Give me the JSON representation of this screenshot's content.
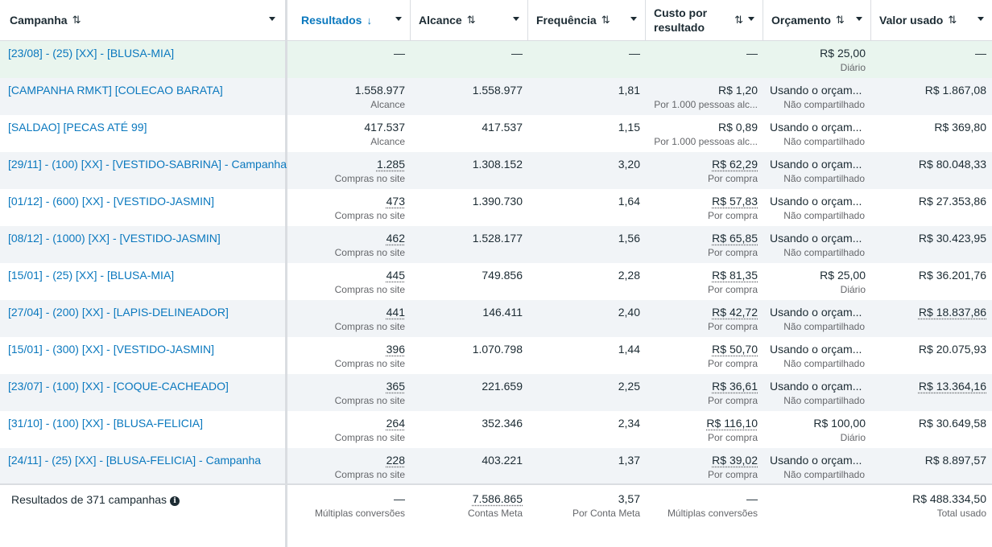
{
  "header": {
    "campaign": "Campanha",
    "results": "Resultados",
    "reach": "Alcance",
    "frequency": "Frequência",
    "cost_per_result_line1": "Custo por",
    "cost_per_result_line2": "resultado",
    "budget": "Orçamento",
    "amount_spent": "Valor usado",
    "sort_icon": "⇅",
    "sort_desc_icon": "↓"
  },
  "rows": [
    {
      "name": "[23/08] - (25) [XX] - [BLUSA-MIA]",
      "results": "—",
      "results_sub": "",
      "reach": "—",
      "frequency": "—",
      "cpr": "—",
      "cpr_sub": "",
      "budget": "R$ 25,00",
      "budget_sub": "Diário",
      "spent": "—"
    },
    {
      "name": "[CAMPANHA RMKT] [COLECAO BARATA]",
      "results": "1.558.977",
      "results_sub": "Alcance",
      "reach": "1.558.977",
      "frequency": "1,81",
      "cpr": "R$ 1,20",
      "cpr_sub": "Por 1.000 pessoas alc...",
      "budget": "Usando o orçam...",
      "budget_sub": "Não compartilhado",
      "spent": "R$ 1.867,08"
    },
    {
      "name": "[SALDAO] [PECAS ATÉ 99]",
      "results": "417.537",
      "results_sub": "Alcance",
      "reach": "417.537",
      "frequency": "1,15",
      "cpr": "R$ 0,89",
      "cpr_sub": "Por 1.000 pessoas alc...",
      "budget": "Usando o orçam...",
      "budget_sub": "Não compartilhado",
      "spent": "R$ 369,80"
    },
    {
      "name": "[29/11] - (100) [XX] - [VESTIDO-SABRINA] - Campanha",
      "results": "1.285",
      "results_sub": "Compras no site",
      "reach": "1.308.152",
      "frequency": "3,20",
      "cpr": "R$ 62,29",
      "cpr_sub": "Por compra",
      "budget": "Usando o orçam...",
      "budget_sub": "Não compartilhado",
      "spent": "R$ 80.048,33"
    },
    {
      "name": "[01/12] - (600) [XX] - [VESTIDO-JASMIN]",
      "results": "473",
      "results_sub": "Compras no site",
      "reach": "1.390.730",
      "frequency": "1,64",
      "cpr": "R$ 57,83",
      "cpr_sub": "Por compra",
      "budget": "Usando o orçam...",
      "budget_sub": "Não compartilhado",
      "spent": "R$ 27.353,86"
    },
    {
      "name": "[08/12] - (1000) [XX] - [VESTIDO-JASMIN]",
      "results": "462",
      "results_sub": "Compras no site",
      "reach": "1.528.177",
      "frequency": "1,56",
      "cpr": "R$ 65,85",
      "cpr_sub": "Por compra",
      "budget": "Usando o orçam...",
      "budget_sub": "Não compartilhado",
      "spent": "R$ 30.423,95"
    },
    {
      "name": "[15/01] - (25) [XX] - [BLUSA-MIA]",
      "results": "445",
      "results_sub": "Compras no site",
      "reach": "749.856",
      "frequency": "2,28",
      "cpr": "R$ 81,35",
      "cpr_sub": "Por compra",
      "budget": "R$ 25,00",
      "budget_sub": "Diário",
      "spent": "R$ 36.201,76"
    },
    {
      "name": "[27/04] - (200) [XX] - [LAPIS-DELINEADOR]",
      "results": "441",
      "results_sub": "Compras no site",
      "reach": "146.411",
      "frequency": "2,40",
      "cpr": "R$ 42,72",
      "cpr_sub": "Por compra",
      "budget": "Usando o orçam...",
      "budget_sub": "Não compartilhado",
      "spent": "R$ 18.837,86"
    },
    {
      "name": "[15/01] - (300) [XX] - [VESTIDO-JASMIN]",
      "results": "396",
      "results_sub": "Compras no site",
      "reach": "1.070.798",
      "frequency": "1,44",
      "cpr": "R$ 50,70",
      "cpr_sub": "Por compra",
      "budget": "Usando o orçam...",
      "budget_sub": "Não compartilhado",
      "spent": "R$ 20.075,93"
    },
    {
      "name": "[23/07] - (100) [XX] - [COQUE-CACHEADO]",
      "results": "365",
      "results_sub": "Compras no site",
      "reach": "221.659",
      "frequency": "2,25",
      "cpr": "R$ 36,61",
      "cpr_sub": "Por compra",
      "budget": "Usando o orçam...",
      "budget_sub": "Não compartilhado",
      "spent": "R$ 13.364,16"
    },
    {
      "name": "[31/10] - (100) [XX] - [BLUSA-FELICIA]",
      "results": "264",
      "results_sub": "Compras no site",
      "reach": "352.346",
      "frequency": "2,34",
      "cpr": "R$ 116,10",
      "cpr_sub": "Por compra",
      "budget": "R$ 100,00",
      "budget_sub": "Diário",
      "spent": "R$ 30.649,58"
    },
    {
      "name": "[24/11] - (25) [XX] - [BLUSA-FELICIA] - Campanha",
      "results": "228",
      "results_sub": "Compras no site",
      "reach": "403.221",
      "frequency": "1,37",
      "cpr": "R$ 39,02",
      "cpr_sub": "Por compra",
      "budget": "Usando o orçam...",
      "budget_sub": "Não compartilhado",
      "spent": "R$ 8.897,57"
    }
  ],
  "footer": {
    "label": "Resultados de 371 campanhas",
    "info_icon": "info-icon",
    "results": "—",
    "results_sub": "Múltiplas conversões",
    "reach": "7.586.865",
    "reach_sub": "Contas Meta",
    "frequency": "3,57",
    "frequency_sub": "Por Conta Meta",
    "cpr": "—",
    "cpr_sub": "Múltiplas conversões",
    "spent": "R$ 488.334,50",
    "spent_sub": "Total usado"
  },
  "colors": {
    "link": "#0a78be",
    "highlight_row": "#e9f5ee",
    "even_row": "#f1f4f7"
  }
}
